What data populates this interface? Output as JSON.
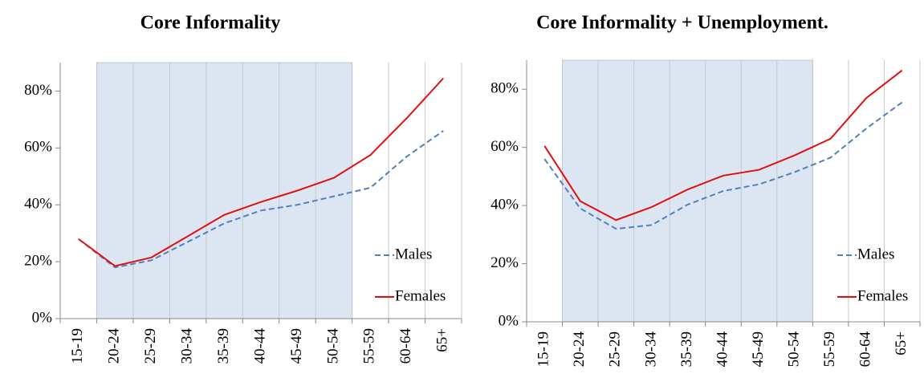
{
  "chart_data": [
    {
      "type": "line",
      "title": "Core Informality",
      "categories": [
        "15-19",
        "20-24",
        "25-29",
        "30-34",
        "35-39",
        "40-44",
        "45-49",
        "50-54",
        "55-59",
        "60-64",
        "65+"
      ],
      "series": [
        {
          "name": "Males",
          "color": "#4f81bd",
          "values": [
            28,
            18,
            20.5,
            27,
            33.5,
            38,
            40,
            43,
            46,
            57,
            66
          ]
        },
        {
          "name": "Females",
          "color": "#e01010",
          "values": [
            28,
            18.5,
            21.5,
            29,
            36.5,
            41,
            45,
            49.5,
            57.5,
            70.5,
            84.5
          ]
        }
      ],
      "ylim": [
        0,
        90
      ],
      "yticks": [
        {
          "value": 0,
          "label": "0%"
        },
        {
          "value": 20,
          "label": "20%"
        },
        {
          "value": 40,
          "label": "40%"
        },
        {
          "value": 60,
          "label": "60%"
        },
        {
          "value": 80,
          "label": "80%"
        }
      ],
      "legend": "right"
    },
    {
      "type": "line",
      "title": "Core Informality + Unemployment.",
      "categories": [
        "15-19",
        "20-24",
        "25-29",
        "30-34",
        "35-39",
        "40-44",
        "45-49",
        "50-54",
        "55-59",
        "60-64",
        "65+"
      ],
      "series": [
        {
          "name": "Males",
          "color": "#4f81bd",
          "values": [
            56,
            39,
            32,
            33.3,
            40.3,
            45,
            47.3,
            51.5,
            56.5,
            66.5,
            75.5
          ]
        },
        {
          "name": "Females",
          "color": "#e01010",
          "values": [
            60.5,
            41.5,
            35,
            39.5,
            45.5,
            50.3,
            52.3,
            57.3,
            63,
            77,
            86.5
          ]
        }
      ],
      "ylim": [
        0,
        90
      ],
      "yticks": [
        {
          "value": 0,
          "label": "0%"
        },
        {
          "value": 20,
          "label": "20%"
        },
        {
          "value": 40,
          "label": "40%"
        },
        {
          "value": 60,
          "label": "60%"
        },
        {
          "value": 80,
          "label": "80%"
        }
      ],
      "legend": "right"
    }
  ]
}
